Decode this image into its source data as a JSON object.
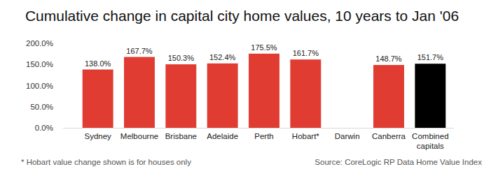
{
  "chart_data": {
    "type": "bar",
    "title": "Cumulative change in capital city home values, 10 years to Jan '06",
    "categories": [
      "Sydney",
      "Melbourne",
      "Brisbane",
      "Adelaide",
      "Perth",
      "Hobart*",
      "Darwin",
      "Canberra",
      "Combined capitals"
    ],
    "values": [
      138.0,
      167.7,
      150.3,
      152.4,
      175.5,
      161.7,
      null,
      148.7,
      151.7
    ],
    "value_labels": [
      "138.0%",
      "167.7%",
      "150.3%",
      "152.4%",
      "175.5%",
      "161.7%",
      null,
      "148.7%",
      "151.7%"
    ],
    "colors": [
      "#e03c31",
      "#e03c31",
      "#e03c31",
      "#e03c31",
      "#e03c31",
      "#e03c31",
      "#e03c31",
      "#e03c31",
      "#000000"
    ],
    "ylim": [
      0,
      200
    ],
    "yticks": [
      {
        "value": 0,
        "label": "0.0%"
      },
      {
        "value": 50,
        "label": "50.0%"
      },
      {
        "value": 100,
        "label": "100.0%"
      },
      {
        "value": 150,
        "label": "150.0%"
      },
      {
        "value": 200,
        "label": "200.0%"
      }
    ],
    "grid": false,
    "data_labels": true,
    "annotations": [
      "* Hobart value change shown is for houses only",
      "Source: CoreLogic RP Data Home Value Index"
    ]
  }
}
